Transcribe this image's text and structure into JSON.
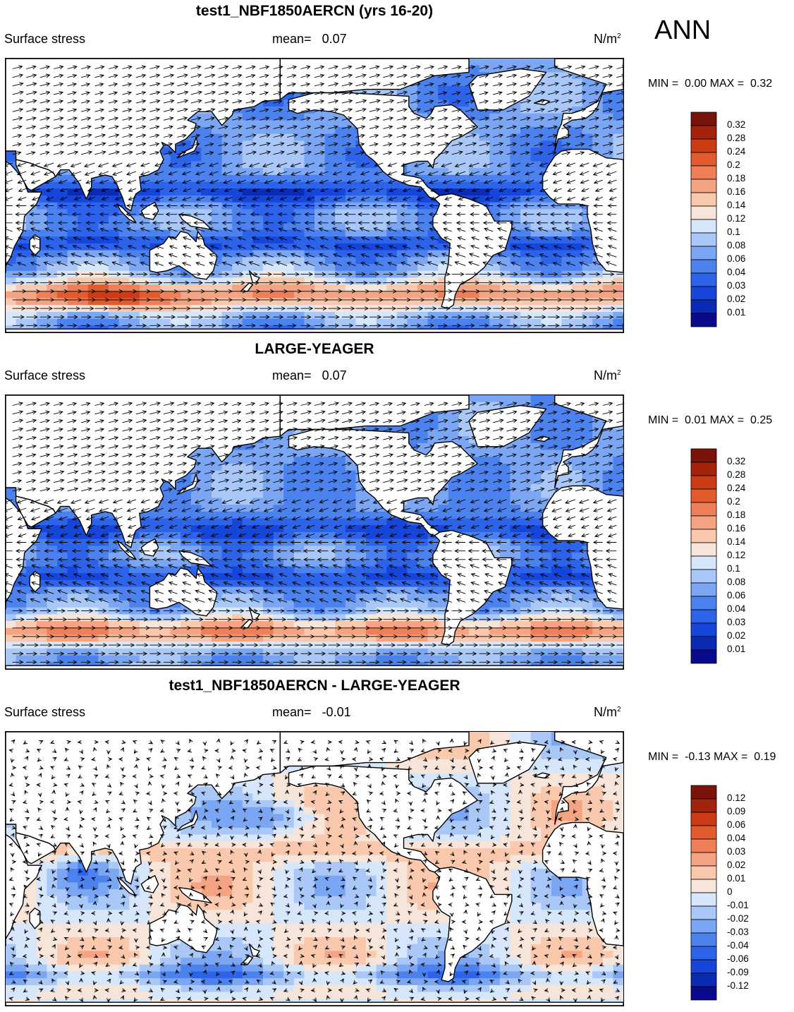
{
  "season": "ANN",
  "panels": [
    {
      "title": "test1_NBF1850AERCN (yrs 16-20)",
      "variable": "Surface stress",
      "mean_label": "mean=",
      "mean_value": "0.07",
      "units": "N/m",
      "units_exp": "2",
      "min_label": "MIN =",
      "min_value": "0.00",
      "max_label": "MAX =",
      "max_value": "0.32",
      "colorbar_labels": [
        "0.32",
        "0.28",
        "0.24",
        "0.2",
        "0.18",
        "0.16",
        "0.14",
        "0.12",
        "0.1",
        "0.08",
        "0.06",
        "0.04",
        "0.03",
        "0.02",
        "0.01"
      ]
    },
    {
      "title": "LARGE-YEAGER",
      "variable": "Surface stress",
      "mean_label": "mean=",
      "mean_value": "0.07",
      "units": "N/m",
      "units_exp": "2",
      "min_label": "MIN =",
      "min_value": "0.01",
      "max_label": "MAX =",
      "max_value": "0.25",
      "colorbar_labels": [
        "0.32",
        "0.28",
        "0.24",
        "0.2",
        "0.18",
        "0.16",
        "0.14",
        "0.12",
        "0.1",
        "0.08",
        "0.06",
        "0.04",
        "0.03",
        "0.02",
        "0.01"
      ]
    },
    {
      "title": "test1_NBF1850AERCN - LARGE-YEAGER",
      "variable": "Surface stress",
      "mean_label": "mean=",
      "mean_value": "-0.01",
      "units": "N/m",
      "units_exp": "2",
      "min_label": "MIN =",
      "min_value": "-0.13",
      "max_label": "MAX =",
      "max_value": "0.19",
      "colorbar_labels": [
        "0.12",
        "0.09",
        "0.06",
        "0.04",
        "0.03",
        "0.02",
        "0.01",
        "0",
        "-0.01",
        "-0.02",
        "-0.03",
        "-0.04",
        "-0.06",
        "-0.09",
        "-0.12"
      ]
    }
  ],
  "colors": {
    "scale": [
      "#0a0a8c",
      "#0b2bb5",
      "#1546d9",
      "#2d63e8",
      "#4c82ee",
      "#7aa6f3",
      "#a9c8f8",
      "#d6e6fb",
      "#f8e5d9",
      "#f9c8ad",
      "#f5a483",
      "#ef7f58",
      "#e45a2f",
      "#cc3a16",
      "#a3230c",
      "#7a130a"
    ],
    "land": "#ffffff",
    "coast": "#000000",
    "arrows": "#000000"
  },
  "chart_data": [
    {
      "type": "heatmap",
      "title": "test1_NBF1850AERCN (yrs 16-20)",
      "field": "Surface stress",
      "units": "N/m2",
      "mean": 0.07,
      "min": 0.0,
      "max": 0.32,
      "levels": [
        0.01,
        0.02,
        0.03,
        0.04,
        0.06,
        0.08,
        0.1,
        0.12,
        0.14,
        0.16,
        0.18,
        0.2,
        0.24,
        0.28,
        0.32
      ],
      "xlim": [
        30,
        390
      ],
      "ylim": [
        -70,
        90
      ]
    },
    {
      "type": "heatmap",
      "title": "LARGE-YEAGER",
      "field": "Surface stress",
      "units": "N/m2",
      "mean": 0.07,
      "min": 0.01,
      "max": 0.25,
      "levels": [
        0.01,
        0.02,
        0.03,
        0.04,
        0.06,
        0.08,
        0.1,
        0.12,
        0.14,
        0.16,
        0.18,
        0.2,
        0.24,
        0.28,
        0.32
      ],
      "xlim": [
        30,
        390
      ],
      "ylim": [
        -70,
        90
      ]
    },
    {
      "type": "heatmap",
      "title": "test1_NBF1850AERCN - LARGE-YEAGER",
      "field": "Surface stress",
      "units": "N/m2",
      "mean": -0.01,
      "min": -0.13,
      "max": 0.19,
      "levels": [
        -0.12,
        -0.09,
        -0.06,
        -0.04,
        -0.03,
        -0.02,
        -0.01,
        0,
        0.01,
        0.02,
        0.03,
        0.04,
        0.06,
        0.09,
        0.12
      ],
      "xlim": [
        30,
        390
      ],
      "ylim": [
        -70,
        90
      ]
    }
  ]
}
